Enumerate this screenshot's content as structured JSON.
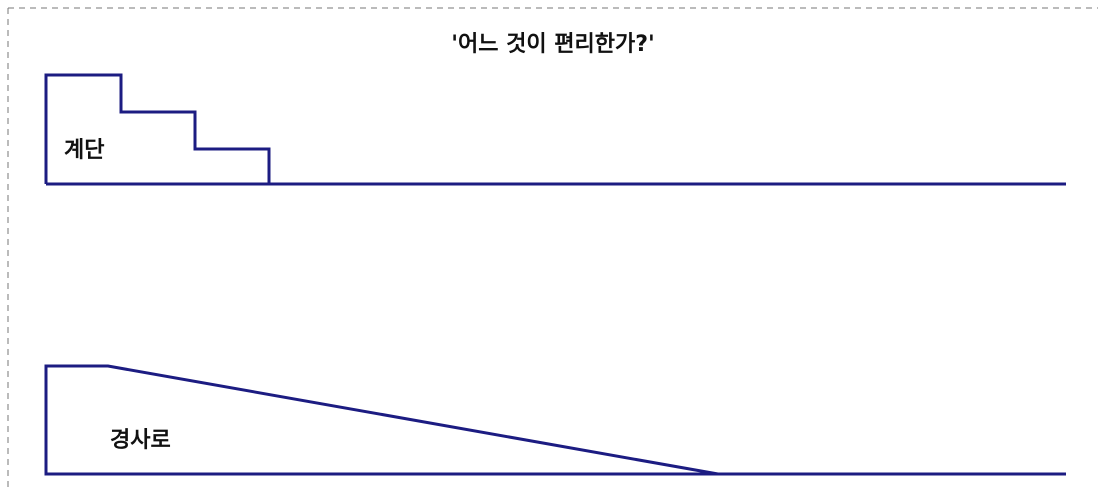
{
  "title": "'어느 것이 편리한가?'",
  "stairs": {
    "label": "계단"
  },
  "ramp": {
    "label": "경사로"
  }
}
